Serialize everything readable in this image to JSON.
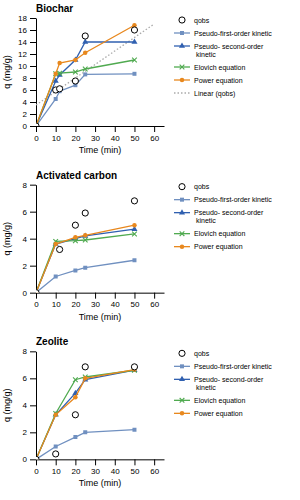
{
  "chart_data": [
    {
      "type": "line",
      "title": "Biochar",
      "xlabel": "Time (min)",
      "ylabel": "q (mg/g)",
      "xlim": [
        0,
        65
      ],
      "xticks": [
        0,
        10,
        20,
        30,
        40,
        50,
        60
      ],
      "ylim": [
        0,
        18
      ],
      "yticks": [
        0,
        2,
        4,
        6,
        8,
        10,
        12,
        14,
        16,
        18
      ],
      "grid": false,
      "series": [
        {
          "name": "qobs",
          "type": "scatter",
          "color": "black",
          "marker": "circle",
          "x": [
            0,
            10,
            12,
            20,
            25,
            50
          ],
          "values": [
            0,
            6.0,
            6.2,
            7.5,
            15.0,
            16.0
          ]
        },
        {
          "name": "Pseudo-first-order kinetic",
          "color": "#7090c0",
          "marker": "square",
          "line_style": "solid",
          "x": [
            0,
            10,
            12,
            20,
            25,
            50
          ],
          "values": [
            0,
            4.5,
            5.8,
            6.8,
            8.6,
            8.7
          ]
        },
        {
          "name": "Pseudo- second-order\nkinetic",
          "color": "#3060b0",
          "marker": "triangle",
          "line_style": "solid",
          "x": [
            0,
            10,
            12,
            20,
            25,
            50
          ],
          "values": [
            0,
            7.5,
            8.5,
            11.0,
            14.0,
            14.0
          ]
        },
        {
          "name": "Elovich equation",
          "color": "#50aa50",
          "marker": "x",
          "line_style": "solid",
          "x": [
            0,
            10,
            12,
            20,
            25,
            50
          ],
          "values": [
            0,
            8.7,
            8.8,
            9.0,
            9.5,
            11.0
          ]
        },
        {
          "name": "Power equation",
          "color": "#e8881e",
          "marker": "circle",
          "line_style": "solid",
          "x": [
            0,
            10,
            12,
            20,
            25,
            50
          ],
          "values": [
            0,
            8.7,
            10.5,
            11.0,
            12.2,
            16.8
          ]
        },
        {
          "name": "Linear (qobs)",
          "color": "#aaaaaa",
          "line_style": "dotted",
          "x": [
            0,
            60
          ],
          "values": [
            3.5,
            17.0
          ]
        }
      ]
    },
    {
      "type": "line",
      "title": "Activated carbon",
      "xlabel": "Time (min)",
      "ylabel": "q (mg/g)",
      "xlim": [
        0,
        65
      ],
      "xticks": [
        0,
        10,
        20,
        30,
        40,
        50,
        60
      ],
      "ylim": [
        0,
        8
      ],
      "yticks": [
        0,
        2,
        4,
        6,
        8
      ],
      "grid": false,
      "series": [
        {
          "name": "qobs",
          "type": "scatter",
          "color": "black",
          "marker": "circle",
          "x": [
            0,
            12,
            20,
            25,
            50
          ],
          "values": [
            0,
            3.2,
            5.0,
            5.9,
            6.8
          ]
        },
        {
          "name": "Pseudo-first-order kinetic",
          "color": "#7090c0",
          "marker": "square",
          "line_style": "solid",
          "x": [
            0,
            10,
            20,
            25,
            50
          ],
          "values": [
            0,
            1.2,
            1.65,
            1.85,
            2.4
          ]
        },
        {
          "name": "Pseudo- second-order\nkinetic",
          "color": "#3060b0",
          "marker": "triangle",
          "line_style": "solid",
          "x": [
            0,
            10,
            20,
            25,
            50
          ],
          "values": [
            0,
            3.6,
            4.0,
            4.2,
            4.7
          ]
        },
        {
          "name": "Elovich equation",
          "color": "#50aa50",
          "marker": "x",
          "line_style": "solid",
          "x": [
            0,
            10,
            20,
            25,
            50
          ],
          "values": [
            0,
            3.8,
            3.85,
            3.9,
            4.35
          ]
        },
        {
          "name": "Power equation",
          "color": "#e8881e",
          "marker": "circle",
          "line_style": "solid",
          "x": [
            0,
            10,
            20,
            25,
            50
          ],
          "values": [
            0,
            3.6,
            4.1,
            4.25,
            5.0
          ]
        }
      ]
    },
    {
      "type": "line",
      "title": "Zeolite",
      "xlabel": "Time (min)",
      "ylabel": "q (mg/g)",
      "xlim": [
        0,
        65
      ],
      "xticks": [
        0,
        10,
        20,
        30,
        40,
        50,
        60
      ],
      "ylim": [
        0,
        8
      ],
      "yticks": [
        0,
        2,
        4,
        6,
        8
      ],
      "grid": false,
      "series": [
        {
          "name": "qobs",
          "type": "scatter",
          "color": "black",
          "marker": "circle",
          "x": [
            0,
            10,
            20,
            25,
            50
          ],
          "values": [
            0,
            0.4,
            3.3,
            6.85,
            6.85
          ]
        },
        {
          "name": "Pseudo-first-order kinetic",
          "color": "#7090c0",
          "marker": "square",
          "line_style": "solid",
          "x": [
            0,
            10,
            20,
            25,
            50
          ],
          "values": [
            0,
            0.95,
            1.65,
            2.0,
            2.2
          ]
        },
        {
          "name": "Pseudo- second-order\nkinetic",
          "color": "#3060b0",
          "marker": "triangle",
          "line_style": "solid",
          "x": [
            0,
            10,
            20,
            25,
            50
          ],
          "values": [
            0,
            3.3,
            4.9,
            5.9,
            6.6
          ]
        },
        {
          "name": "Elovich equation",
          "color": "#50aa50",
          "marker": "x",
          "line_style": "solid",
          "x": [
            0,
            10,
            20,
            25,
            50
          ],
          "values": [
            0,
            3.4,
            5.9,
            6.1,
            6.6
          ]
        },
        {
          "name": "Power equation",
          "color": "#e8881e",
          "marker": "circle",
          "line_style": "solid",
          "x": [
            0,
            10,
            20,
            25,
            50
          ],
          "values": [
            0,
            3.3,
            4.6,
            6.0,
            6.65
          ]
        }
      ]
    }
  ]
}
